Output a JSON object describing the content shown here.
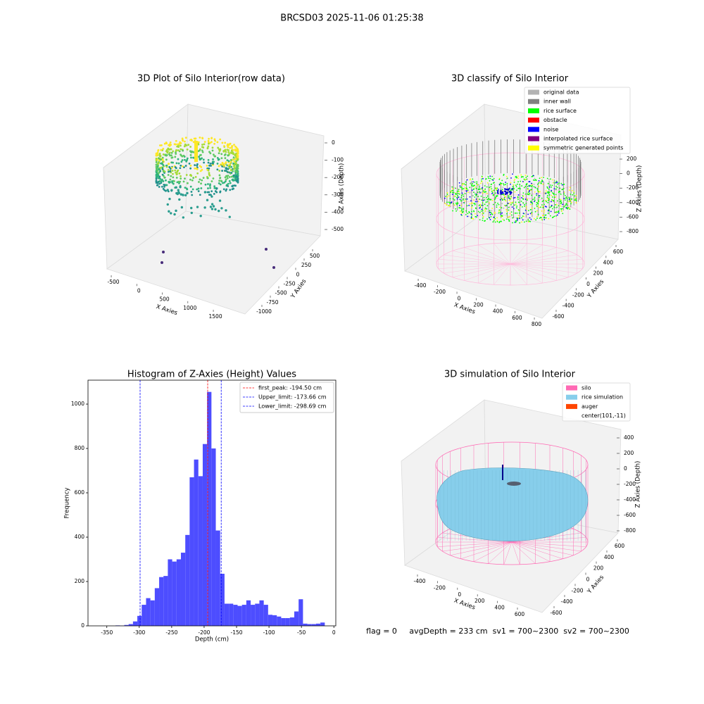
{
  "title": "BRCSD03 2025-11-06 01:25:38",
  "footer": "flag = 0     avgDepth = 233 cm  sv1 = 700~2300  sv2 = 700~2300",
  "chart_data": [
    {
      "type": "scatter3d",
      "title": "3D Plot of Silo Interior(row data)",
      "xlabel": "X Axies",
      "ylabel": "Y Axies",
      "zlabel": "Z Axies (Depth)",
      "xlim": [
        -600,
        1600
      ],
      "xticks": [
        -500,
        0,
        500,
        1000,
        1500
      ],
      "ylim": [
        -1100,
        600
      ],
      "yticks": [
        -1000,
        -750,
        -500,
        -250,
        0,
        250,
        500
      ],
      "zlim": [
        -550,
        30
      ],
      "zticks": [
        -500,
        -400,
        -300,
        -200,
        -100,
        0
      ]
    },
    {
      "type": "classify3d",
      "title": "3D classify of Silo Interior",
      "xlabel": "X Axies",
      "ylabel": "Y Axies",
      "zlabel": "Z Axies (Depth)",
      "xlim": [
        -500,
        850
      ],
      "xticks": [
        -400,
        -200,
        0,
        200,
        400,
        600,
        800
      ],
      "ylim": [
        -700,
        700
      ],
      "yticks": [
        -600,
        -400,
        -200,
        0,
        200,
        400,
        600
      ],
      "zlim": [
        -900,
        300
      ],
      "zticks": [
        -800,
        -600,
        -400,
        -200,
        0,
        200
      ],
      "legend": [
        {
          "name": "original data",
          "color": "#b3b3b3"
        },
        {
          "name": "inner wall",
          "color": "#808080"
        },
        {
          "name": "rice surface",
          "color": "#00ff00"
        },
        {
          "name": "obstacle",
          "color": "#ff0000"
        },
        {
          "name": "noise",
          "color": "#0000ff"
        },
        {
          "name": "interpolated rice surface",
          "color": "#800080"
        },
        {
          "name": "symmetric generated points",
          "color": "#ffff00"
        }
      ]
    },
    {
      "type": "hist",
      "title": "Histogram of Z-Axies (Height) Values",
      "xlabel": "Depth (cm)",
      "ylabel": "Frequency",
      "color": "#4d4dff",
      "bins": [
        -350,
        -343.28,
        -336.56,
        -329.84,
        -323.12,
        -316.4,
        -309.68,
        -302.96,
        -296.24,
        -289.52,
        -282.8,
        -276.08,
        -269.36,
        -262.64,
        -255.92,
        -249.2,
        -242.48,
        -235.76,
        -229.04,
        -222.32,
        -215.6,
        -208.88,
        -202.16,
        -195.44,
        -188.72,
        -182,
        -175.28,
        -168.56,
        -161.84,
        -155.12,
        -148.4,
        -141.68,
        -134.96,
        -128.24,
        -121.52,
        -114.8,
        -108.08,
        -101.36,
        -94.64,
        -87.92,
        -81.2,
        -74.48,
        -67.76,
        -61.04,
        -54.32,
        -47.6,
        -40.88,
        -34.16,
        -27.44,
        -20.72,
        -14
      ],
      "counts": [
        0,
        0,
        2,
        1,
        4,
        8,
        20,
        45,
        95,
        125,
        115,
        170,
        220,
        225,
        300,
        290,
        300,
        330,
        410,
        670,
        750,
        675,
        820,
        1055,
        800,
        430,
        235,
        100,
        100,
        95,
        90,
        95,
        115,
        95,
        100,
        115,
        95,
        50,
        48,
        42,
        35,
        35,
        38,
        65,
        120,
        10,
        8,
        8,
        10,
        15
      ],
      "xlim": [
        -379,
        3
      ],
      "xticks": [
        -350,
        -300,
        -250,
        -200,
        -150,
        -100,
        -50,
        0
      ],
      "ylim": [
        0,
        1108
      ],
      "yticks": [
        0,
        200,
        400,
        600,
        800,
        1000
      ],
      "lines": [
        {
          "label": "first_peak: -194.50 cm",
          "value": -194.5,
          "color": "#ff0000"
        },
        {
          "label": "Upper_limit: -173.66 cm",
          "value": -173.66,
          "color": "#0000ff"
        },
        {
          "label": "Lower_limit: -298.69 cm",
          "value": -298.69,
          "color": "#0000ff"
        }
      ],
      "legend_loc": "upper right"
    },
    {
      "type": "surface3d",
      "title": "3D simulation of Silo Interior",
      "xlabel": "X Axies",
      "ylabel": "Y Axies",
      "zlabel": "Z Axies (Depth)",
      "xlim": [
        -500,
        700
      ],
      "xticks": [
        -400,
        -200,
        0,
        200,
        400,
        600
      ],
      "ylim": [
        -700,
        700
      ],
      "yticks": [
        -600,
        -400,
        -200,
        0,
        200,
        400,
        600
      ],
      "zlim": [
        -900,
        500
      ],
      "zticks": [
        -800,
        -600,
        -400,
        -200,
        0,
        200,
        400
      ],
      "legend": [
        {
          "name": "silo",
          "color": "#ff69b4"
        },
        {
          "name": "rice simulation",
          "color": "#87ceeb"
        },
        {
          "name": "auger",
          "color": "#ff4500"
        },
        {
          "name": "center(101,-11)",
          "color": "#ffffff"
        }
      ]
    }
  ]
}
